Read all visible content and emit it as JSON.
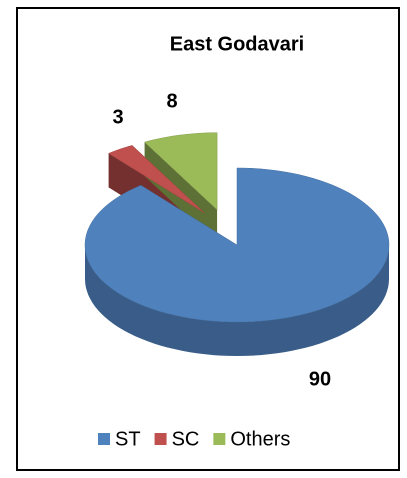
{
  "chart_data": {
    "type": "pie",
    "title": "East Godavari",
    "categories": [
      "ST",
      "SC",
      "Others"
    ],
    "values": [
      90,
      3,
      8
    ],
    "colors": [
      "#4f81bd",
      "#c0504d",
      "#9bbb59"
    ],
    "legend": "bottom"
  }
}
